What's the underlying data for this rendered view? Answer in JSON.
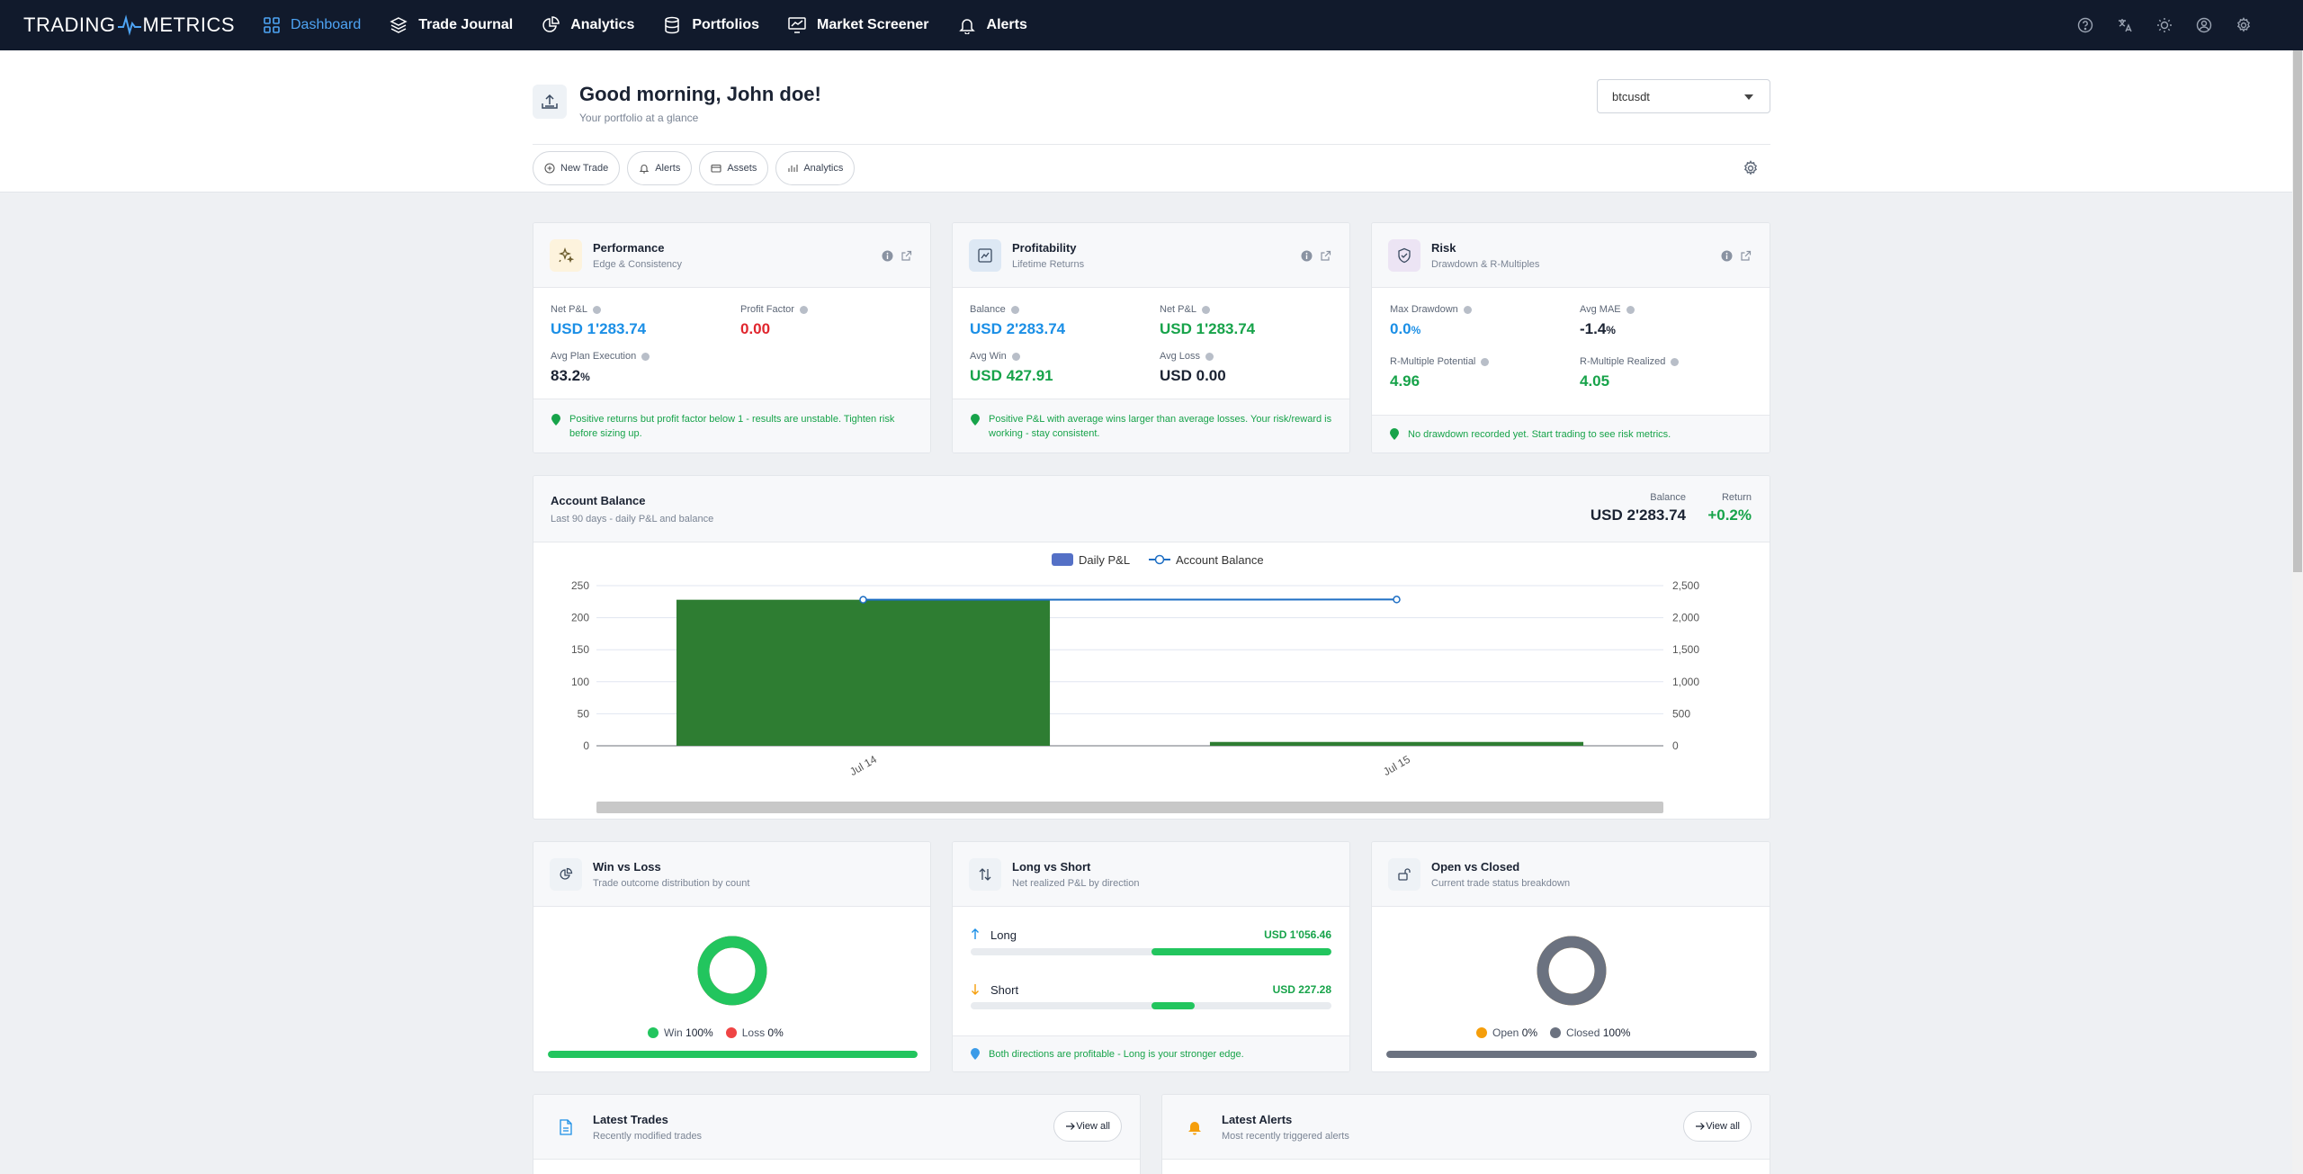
{
  "nav": {
    "logo_left": "TRADING",
    "logo_right": "METRICS",
    "items": [
      {
        "label": "Dashboard",
        "icon": "grid-icon",
        "active": true
      },
      {
        "label": "Trade Journal",
        "icon": "layers-icon"
      },
      {
        "label": "Analytics",
        "icon": "pie-chart-icon"
      },
      {
        "label": "Portfolios",
        "icon": "database-icon"
      },
      {
        "label": "Market Screener",
        "icon": "monitor-chart-icon"
      },
      {
        "label": "Alerts",
        "icon": "bell-icon"
      }
    ]
  },
  "header": {
    "title": "Good morning, John doe!",
    "subtitle": "Your portfolio at a glance",
    "select_value": "btcusdt",
    "quick_actions": [
      "New Trade",
      "Alerts",
      "Assets",
      "Analytics"
    ]
  },
  "performance": {
    "title": "Performance",
    "subtitle": "Edge & Consistency",
    "net_pnl_label": "Net P&L",
    "net_pnl_value": "USD 1'283.74",
    "profit_factor_label": "Profit Factor",
    "profit_factor_value": "0.00",
    "avg_plan_label": "Avg Plan Execution",
    "avg_plan_value": "83.2",
    "avg_plan_unit": "%",
    "tip_line1": "Positive returns but profit factor below 1 - results are unstable. Tighten risk",
    "tip_line2": "before sizing up."
  },
  "profitability": {
    "title": "Profitability",
    "subtitle": "Lifetime Returns",
    "balance_label": "Balance",
    "balance_value": "USD 2'283.74",
    "net_pnl_label": "Net P&L",
    "net_pnl_value": "USD 1'283.74",
    "avg_win_label": "Avg Win",
    "avg_win_value": "USD 427.91",
    "avg_loss_label": "Avg Loss",
    "avg_loss_value": "USD 0.00",
    "tip_line1": "Positive P&L with average wins larger than average losses. Your risk/reward is",
    "tip_line2": "working - stay consistent."
  },
  "risk": {
    "title": "Risk",
    "subtitle": "Drawdown & R-Multiples",
    "max_dd_label": "Max Drawdown",
    "max_dd_value": "0.0",
    "max_dd_unit": "%",
    "avg_mae_label": "Avg MAE",
    "avg_mae_value": "-1.4",
    "avg_mae_unit": "%",
    "r_pot_label": "R-Multiple Potential",
    "r_pot_value": "4.96",
    "r_real_label": "R-Multiple Realized",
    "r_real_value": "4.05",
    "tip": "No drawdown recorded yet. Start trading to see risk metrics."
  },
  "account_balance": {
    "title": "Account Balance",
    "subtitle": "Last 90 days - daily P&L and balance",
    "balance_label": "Balance",
    "balance_value": "USD 2'283.74",
    "return_label": "Return",
    "return_value": "+0.2%"
  },
  "chart_data": {
    "type": "bar",
    "categories": [
      "Jul 14",
      "Jul 15"
    ],
    "series": [
      {
        "name": "Daily P&L",
        "type": "bar",
        "axis": "left",
        "values": [
          228,
          6
        ],
        "color": "#2e7d32"
      },
      {
        "name": "Account Balance",
        "type": "line",
        "axis": "right",
        "values": [
          2280,
          2283.74
        ],
        "color": "#1f6fc4"
      }
    ],
    "y_left": {
      "min": 0,
      "max": 250,
      "ticks": [
        "0",
        "50",
        "100",
        "150",
        "200",
        "250"
      ]
    },
    "y_right": {
      "min": 0,
      "max": 2500,
      "ticks": [
        "0",
        "500",
        "1,000",
        "1,500",
        "2,000",
        "2,500"
      ]
    },
    "grid": true,
    "legend": "top-center",
    "legend_swatch_color": "#5470c6"
  },
  "win_loss": {
    "title": "Win vs Loss",
    "subtitle": "Trade outcome distribution by count",
    "win_label": "Win",
    "win_value": "100%",
    "loss_label": "Loss",
    "loss_value": "0%",
    "win_fraction": 1.0,
    "win_color": "#22c55e",
    "loss_color": "#ef4444"
  },
  "long_short": {
    "title": "Long vs Short",
    "subtitle": "Net realized P&L by direction",
    "long_label": "Long",
    "long_value": "USD 1'056.46",
    "long_fraction": 0.5,
    "short_label": "Short",
    "short_value": "USD 227.28",
    "short_fraction": 0.12,
    "tip": "Both directions are profitable - Long is your stronger edge."
  },
  "open_closed": {
    "title": "Open vs Closed",
    "subtitle": "Current trade status breakdown",
    "open_label": "Open",
    "open_value": "0%",
    "closed_label": "Closed",
    "closed_value": "100%",
    "closed_fraction": 1.0,
    "open_color": "#f59e0b",
    "closed_color": "#6b7280"
  },
  "latest_trades": {
    "title": "Latest Trades",
    "subtitle": "Recently modified trades",
    "view_all": "View all"
  },
  "latest_alerts": {
    "title": "Latest Alerts",
    "subtitle": "Most recently triggered alerts",
    "view_all": "View all"
  }
}
